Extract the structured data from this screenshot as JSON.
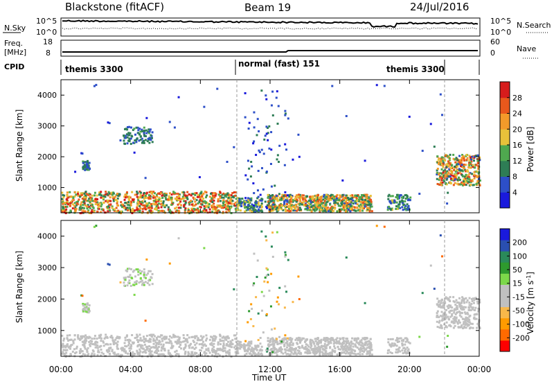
{
  "header": {
    "radar": "Blackstone (fitACF)",
    "beam": "Beam 19",
    "date": "24/Jul/2016"
  },
  "strip": {
    "nsky_label": "N.Sky",
    "nsearch_label": "N.Search",
    "freq_label": "Freq.",
    "freq_unit": "[MHz]",
    "cpid_label": "CPID",
    "nave_label": "Nave",
    "noise_ticks": [
      "10^5",
      "10^0"
    ],
    "freq_ticks": [
      "18",
      "8"
    ],
    "nave_ticks": [
      "60",
      "0"
    ],
    "cpid_segments": [
      {
        "label": "themis 3300"
      },
      {
        "label": "normal (fast) 151"
      },
      {
        "label": "themis 3300"
      }
    ]
  },
  "colors": {
    "power": [
      "#1a1adc",
      "#2d4fc8",
      "#2e7d55",
      "#4fa84f",
      "#e8c23a",
      "#f39a2a",
      "#e8581c",
      "#d61c1c"
    ],
    "velocity": [
      "#ff0000",
      "#ff6a00",
      "#ff9b00",
      "#f8b84a",
      "#c0c0c0",
      "#c0c0c0",
      "#7cd84a",
      "#2e9a2e",
      "#2a8a5a",
      "#2a4fb0",
      "#1a1adc"
    ]
  },
  "chart_data": [
    {
      "type": "heatmap",
      "title": "",
      "xlabel": "",
      "ylabel": "Slant Range [km]",
      "xlim": [
        "00:00",
        "00:00"
      ],
      "ylim": [
        180,
        4500
      ],
      "yticks": [
        "1000",
        "2000",
        "3000",
        "4000"
      ],
      "colorbar_label": "Power [dB]",
      "colorbar_ticks": [
        "4",
        "8",
        "12",
        "16",
        "20",
        "24",
        "28"
      ],
      "colorbar_range": [
        0,
        30
      ]
    },
    {
      "type": "heatmap",
      "title": "",
      "xlabel": "Time UT",
      "ylabel": "Slant Range [km]",
      "xlim": [
        "00:00",
        "00:00"
      ],
      "ylim": [
        180,
        4500
      ],
      "xticks": [
        "00:00",
        "04:00",
        "08:00",
        "12:00",
        "16:00",
        "20:00",
        "00:00"
      ],
      "yticks": [
        "1000",
        "2000",
        "3000",
        "4000"
      ],
      "colorbar_label": "Velocity [m s",
      "colorbar_label_sup": "-1",
      "colorbar_label_end": "]",
      "colorbar_ticks": [
        "-200",
        "-100",
        "-50",
        "-15",
        "15",
        "50",
        "100",
        "200"
      ],
      "colorbar_range": [
        -250,
        250
      ]
    }
  ]
}
